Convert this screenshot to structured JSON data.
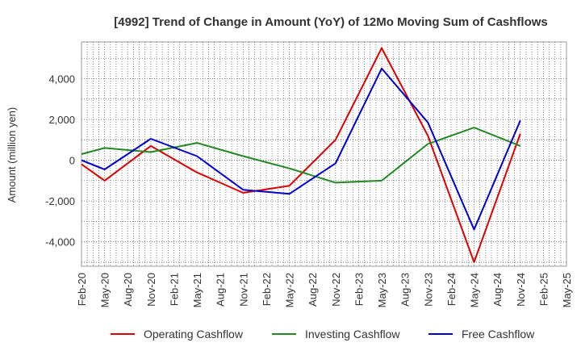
{
  "chart_data": {
    "type": "line",
    "title": "[4992]  Trend of Change in Amount (YoY) of 12Mo Moving Sum of Cashflows",
    "xlabel": "",
    "ylabel": "Amount (million yen)",
    "ylim": [
      -5200,
      5800
    ],
    "yticks": [
      -4000,
      -2000,
      0,
      2000,
      4000
    ],
    "ytick_labels": [
      "-4,000",
      "-2,000",
      "0",
      "2,000",
      "4,000"
    ],
    "categories": [
      "Feb-20",
      "May-20",
      "Aug-20",
      "Nov-20",
      "Feb-21",
      "May-21",
      "Aug-21",
      "Nov-21",
      "Feb-22",
      "May-22",
      "Aug-22",
      "Nov-22",
      "Feb-23",
      "May-23",
      "Aug-23",
      "Nov-23",
      "Feb-24",
      "May-24",
      "Aug-24",
      "Nov-24",
      "Feb-25",
      "May-25"
    ],
    "grid": true,
    "legend_position": "bottom",
    "series": [
      {
        "name": "Operating Cashflow",
        "color": "#dd0000",
        "values": [
          -200,
          -1000,
          null,
          700,
          null,
          -600,
          null,
          -1600,
          null,
          -1250,
          null,
          1000,
          null,
          5500,
          null,
          1200,
          null,
          -5000,
          null,
          1300,
          null,
          null
        ]
      },
      {
        "name": "Investing Cashflow",
        "color": "#228822",
        "values": [
          300,
          600,
          null,
          400,
          null,
          850,
          null,
          200,
          null,
          -400,
          null,
          -1100,
          null,
          -1000,
          null,
          800,
          null,
          1600,
          null,
          700,
          null,
          null
        ]
      },
      {
        "name": "Free Cashflow",
        "color": "#0000cc",
        "values": [
          0,
          -450,
          null,
          1050,
          null,
          200,
          null,
          -1450,
          null,
          -1650,
          null,
          -150,
          null,
          4500,
          null,
          1850,
          null,
          -3400,
          null,
          1950,
          null,
          null
        ]
      }
    ]
  }
}
